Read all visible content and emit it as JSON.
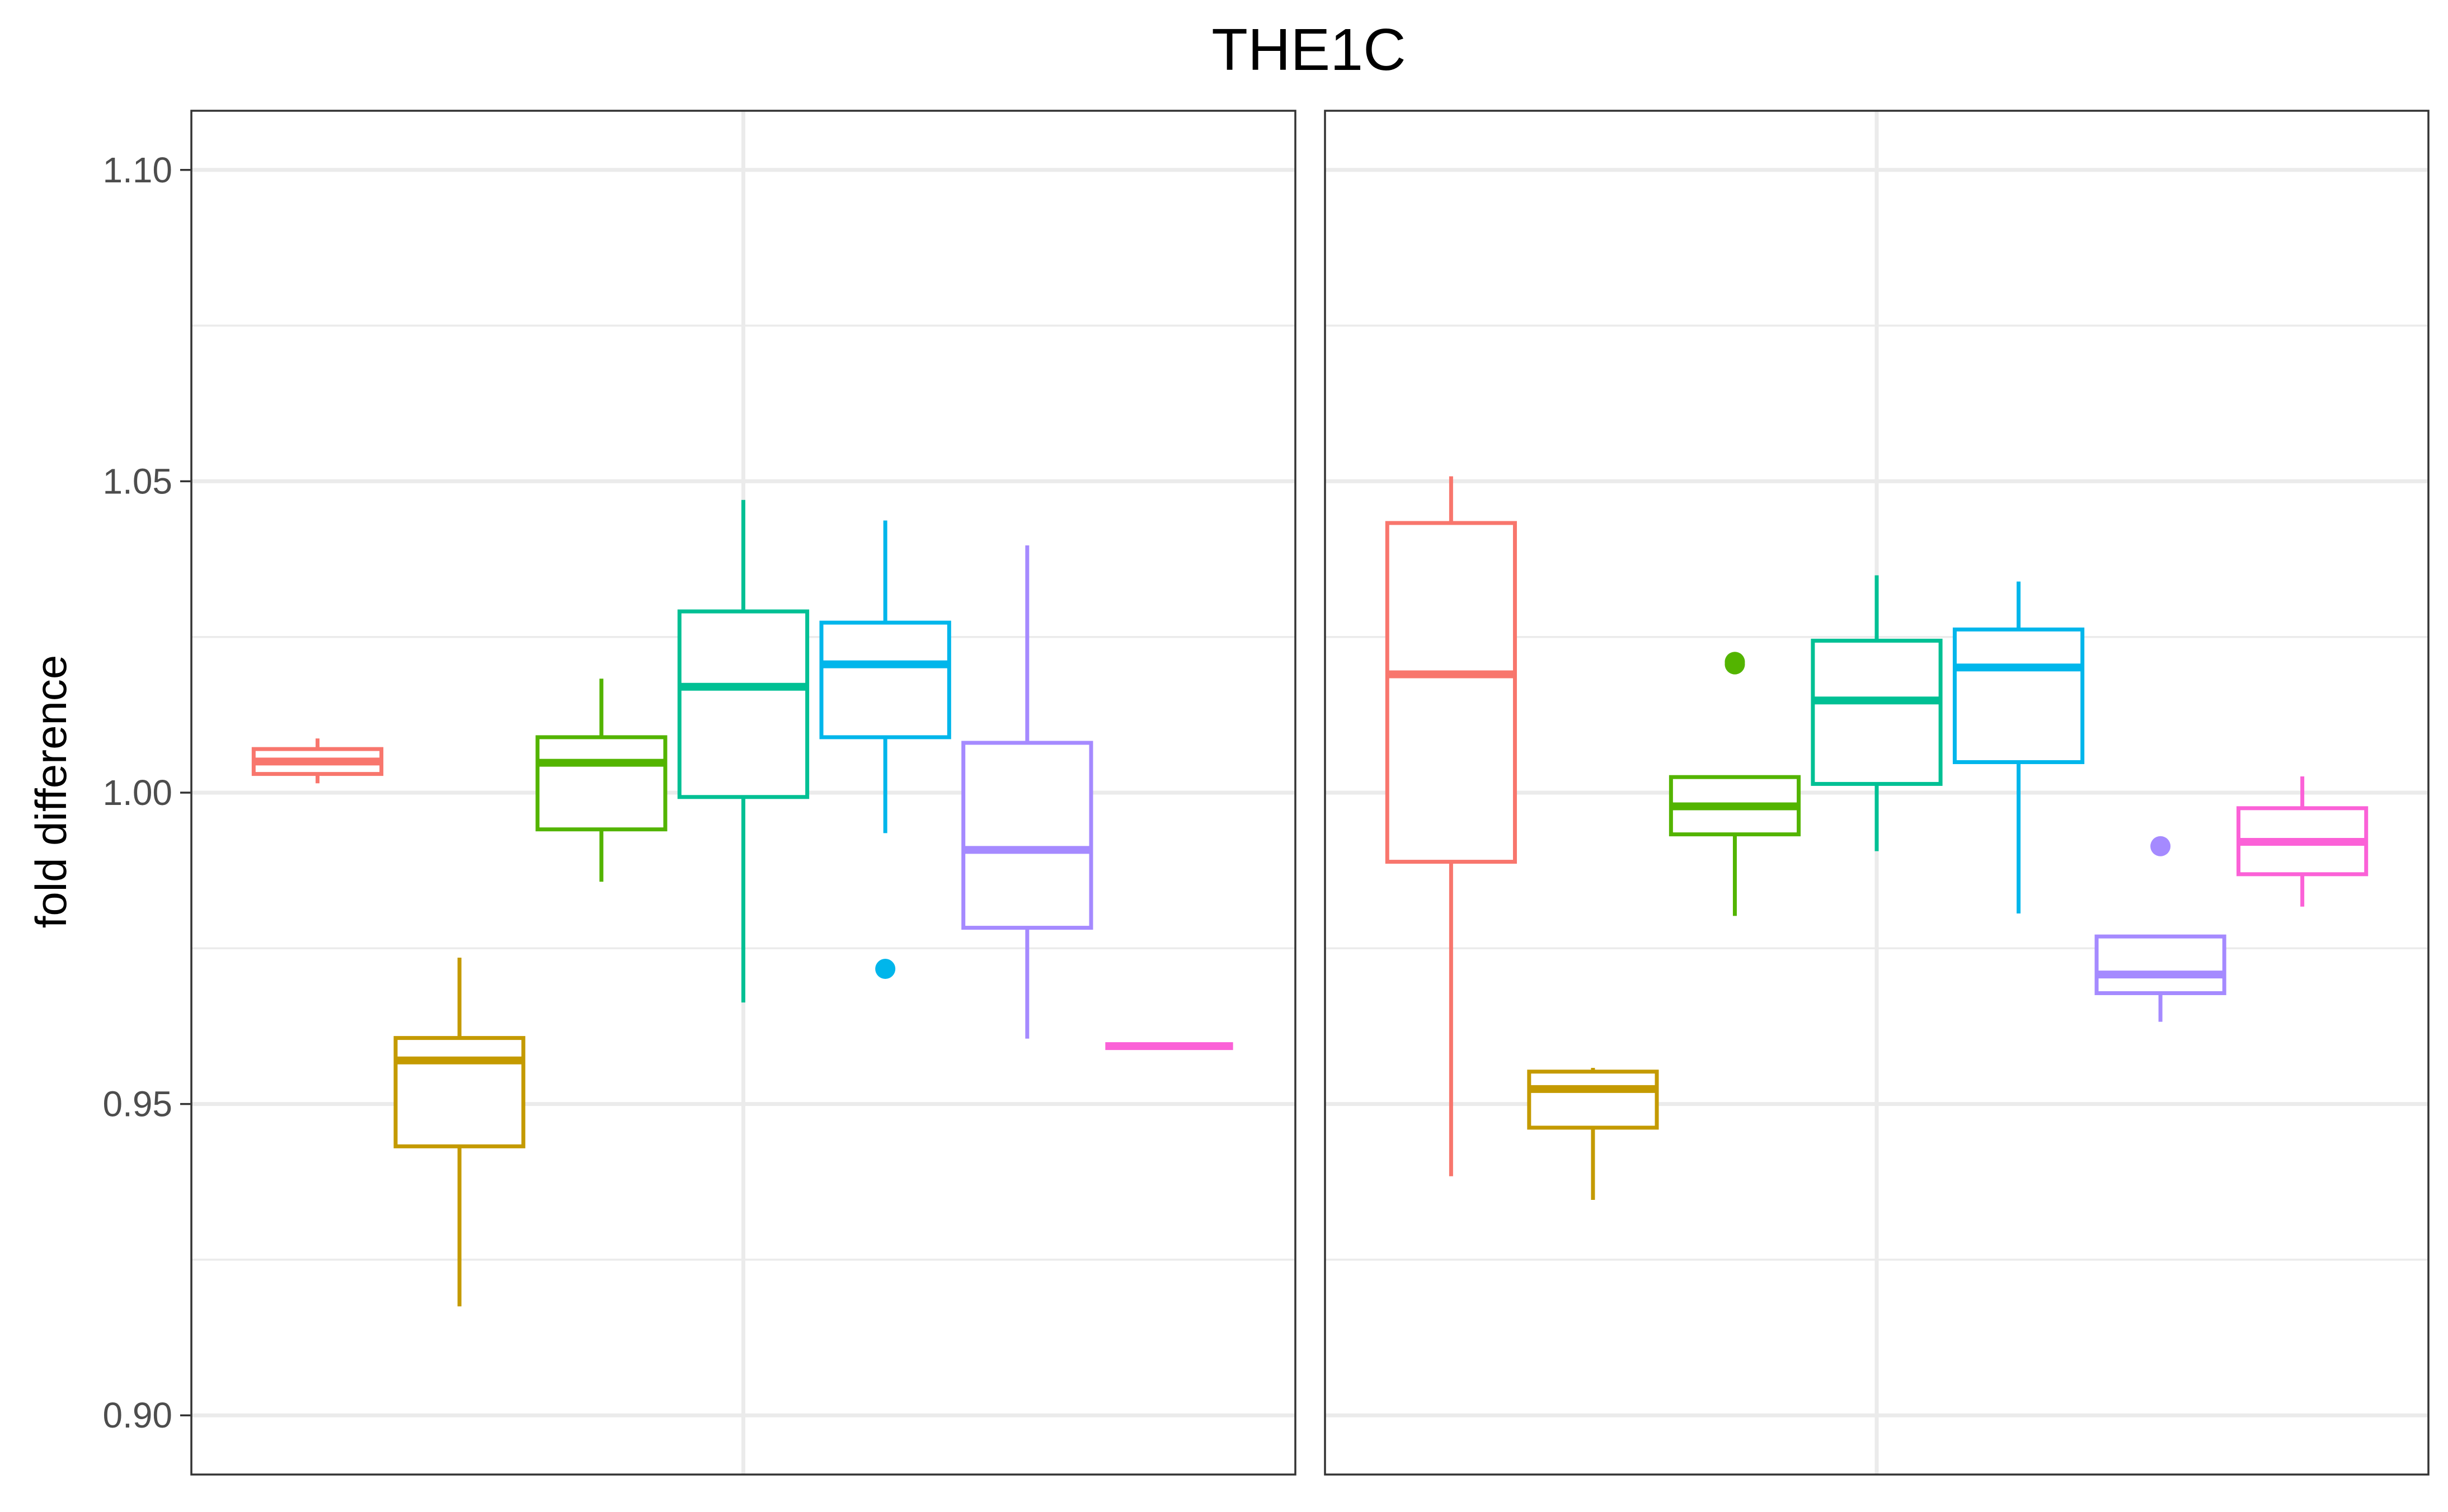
{
  "chart_data": {
    "type": "boxplot",
    "title": "THE1C",
    "ylabel": "fold difference",
    "xlabel": "",
    "ylim": [
      0.8905,
      1.1095
    ],
    "y_ticks": [
      0.9,
      0.95,
      1.0,
      1.05,
      1.1
    ],
    "y_tick_labels": [
      "0.90",
      "0.95",
      "1.00",
      "1.05",
      "1.10"
    ],
    "grid": true,
    "legend": "none",
    "colors": [
      "#F8766D",
      "#C49A00",
      "#53B400",
      "#00C094",
      "#00B6EB",
      "#A58AFF",
      "#FB61D7"
    ],
    "panels": [
      {
        "boxes": [
          {
            "color_index": 0,
            "min": 1.0015,
            "q1": 1.003,
            "median": 1.005,
            "q3": 1.007,
            "max": 1.0087,
            "outliers": []
          },
          {
            "color_index": 1,
            "min": 0.9175,
            "q1": 0.9432,
            "median": 0.957,
            "q3": 0.9606,
            "max": 0.9735,
            "outliers": []
          },
          {
            "color_index": 2,
            "min": 0.9857,
            "q1": 0.9941,
            "median": 1.0048,
            "q3": 1.0089,
            "max": 1.0183,
            "outliers": []
          },
          {
            "color_index": 3,
            "min": 0.9663,
            "q1": 0.9993,
            "median": 1.017,
            "q3": 1.0291,
            "max": 1.047,
            "outliers": []
          },
          {
            "color_index": 4,
            "min": 0.9935,
            "q1": 1.0089,
            "median": 1.0206,
            "q3": 1.0273,
            "max": 1.0437,
            "outliers": [
              0.9717
            ]
          },
          {
            "color_index": 5,
            "min": 0.9605,
            "q1": 0.9783,
            "median": 0.9908,
            "q3": 1.008,
            "max": 1.0397,
            "outliers": []
          },
          {
            "color_index": 6,
            "min": 0.9593,
            "q1": 0.9593,
            "median": 0.9593,
            "q3": 0.9593,
            "max": 0.9593,
            "outliers": []
          }
        ]
      },
      {
        "boxes": [
          {
            "color_index": 0,
            "min": 0.9384,
            "q1": 0.9889,
            "median": 1.019,
            "q3": 1.0433,
            "max": 1.0508,
            "outliers": []
          },
          {
            "color_index": 1,
            "min": 0.9346,
            "q1": 0.9462,
            "median": 0.9524,
            "q3": 0.9552,
            "max": 0.9558,
            "outliers": []
          },
          {
            "color_index": 2,
            "min": 0.9802,
            "q1": 0.9933,
            "median": 0.9978,
            "q3": 1.0025,
            "max": 1.0025,
            "outliers": [
              1.0206,
              1.021
            ]
          },
          {
            "color_index": 3,
            "min": 0.9906,
            "q1": 1.0014,
            "median": 1.0148,
            "q3": 1.0244,
            "max": 1.0349,
            "outliers": []
          },
          {
            "color_index": 4,
            "min": 0.9806,
            "q1": 1.0049,
            "median": 1.0201,
            "q3": 1.0262,
            "max": 1.0339,
            "outliers": []
          },
          {
            "color_index": 5,
            "min": 0.9632,
            "q1": 0.9678,
            "median": 0.9708,
            "q3": 0.9769,
            "max": 0.9769,
            "outliers": [
              0.9914
            ]
          },
          {
            "color_index": 6,
            "min": 0.9817,
            "q1": 0.9869,
            "median": 0.9921,
            "q3": 0.9975,
            "max": 1.0026,
            "outliers": []
          }
        ]
      }
    ]
  }
}
